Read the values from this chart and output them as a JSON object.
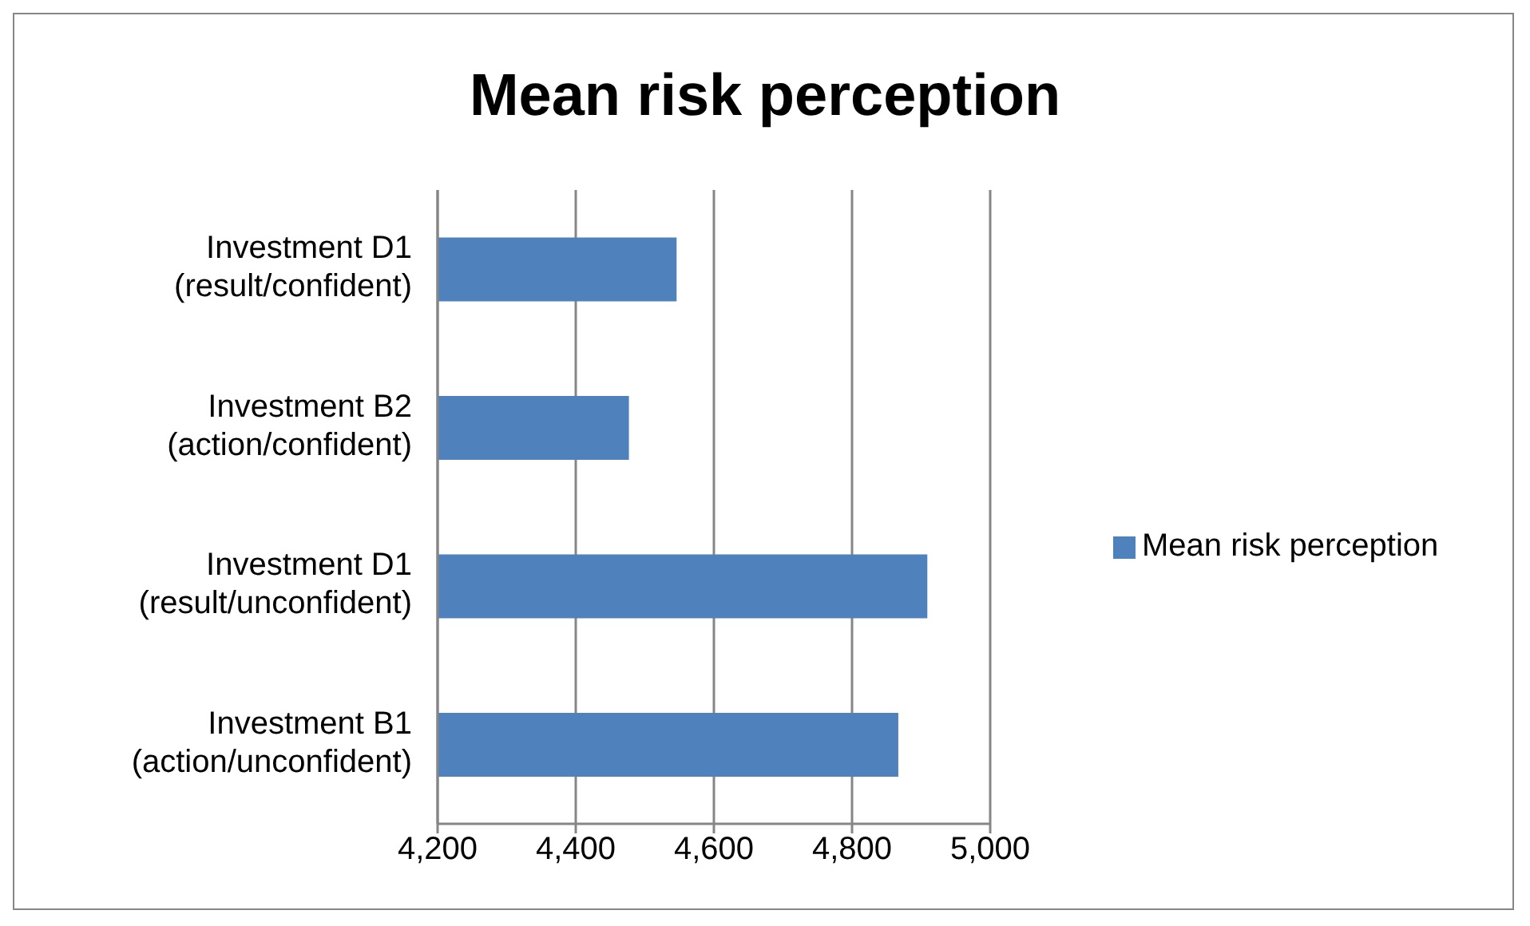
{
  "chart_data": {
    "type": "bar",
    "orientation": "horizontal",
    "title": "Mean risk perception",
    "categories": [
      "Investment D1 (result/confident)",
      "Investment B2 (action/confident)",
      "Investment D1 (result/unconfident)",
      "Investment B1 (action/unconfident)"
    ],
    "series": [
      {
        "name": "Mean risk perception",
        "color": "#4f81bd",
        "values": [
          4546,
          4477,
          4909,
          4867
        ]
      }
    ],
    "xlim": [
      4200,
      5000
    ],
    "xticks": [
      {
        "value": 4200,
        "label": "4,200"
      },
      {
        "value": 4400,
        "label": "4,400"
      },
      {
        "value": 4600,
        "label": "4,600"
      },
      {
        "value": 4800,
        "label": "4,800"
      },
      {
        "value": 5000,
        "label": "5,000"
      }
    ],
    "grid": "x",
    "legend": "right"
  }
}
